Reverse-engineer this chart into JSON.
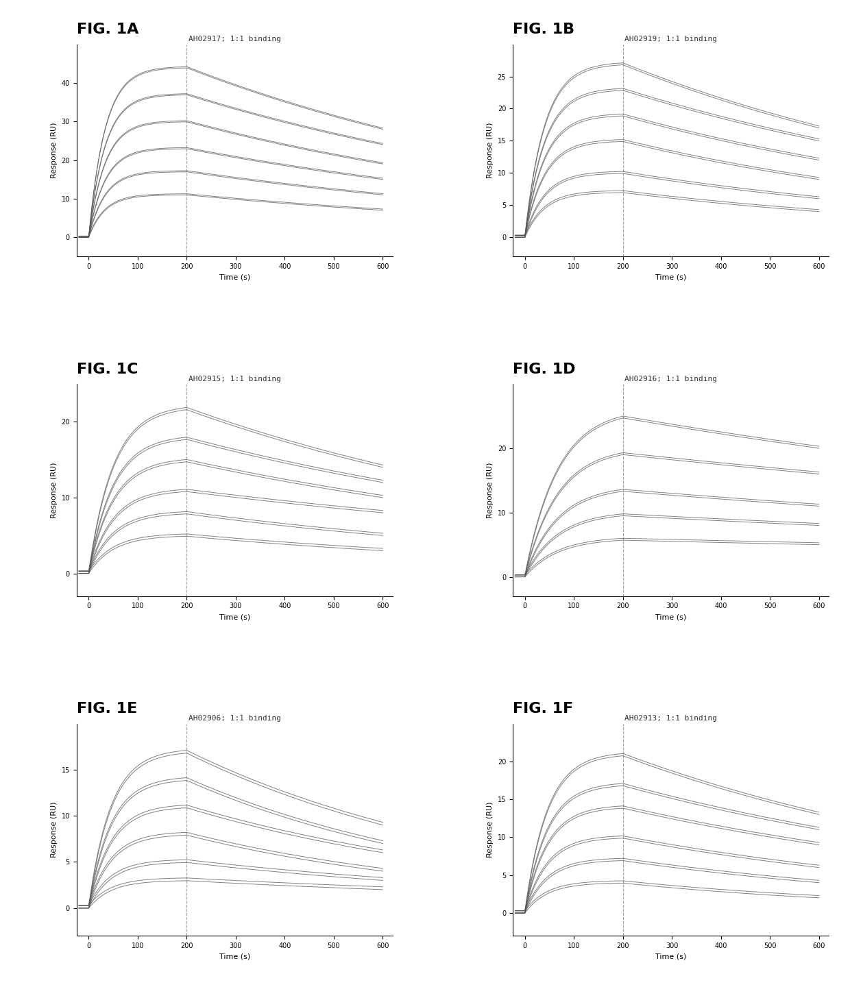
{
  "panels": [
    {
      "label": "FIG. 1A",
      "title": "AH02917; 1:1 binding",
      "ylim": [
        -5,
        50
      ],
      "yticks": [
        0,
        10,
        20,
        30,
        40
      ],
      "n_curves": 6,
      "peak_values": [
        44,
        37,
        30,
        23,
        17,
        11
      ],
      "end_values": [
        28,
        24,
        19,
        15,
        11,
        7
      ],
      "ka_values": [
        0.03,
        0.03,
        0.03,
        0.03,
        0.03,
        0.03
      ],
      "assoc_end": 200,
      "total_time": 600
    },
    {
      "label": "FIG. 1B",
      "title": "AH02919; 1:1 binding",
      "ylim": [
        -3,
        30
      ],
      "yticks": [
        0,
        5,
        10,
        15,
        20,
        25
      ],
      "n_curves": 6,
      "peak_values": [
        27,
        23,
        19,
        15,
        10,
        7
      ],
      "end_values": [
        17,
        15,
        12,
        9,
        6,
        4
      ],
      "ka_values": [
        0.025,
        0.025,
        0.025,
        0.025,
        0.025,
        0.025
      ],
      "assoc_end": 200,
      "total_time": 600
    },
    {
      "label": "FIG. 1C",
      "title": "AH02915; 1:1 binding",
      "ylim": [
        -3,
        25
      ],
      "yticks": [
        0,
        10,
        20
      ],
      "n_curves": 6,
      "peak_values": [
        22,
        18,
        15,
        11,
        8,
        5
      ],
      "end_values": [
        14,
        12,
        10,
        8,
        5,
        3
      ],
      "ka_values": [
        0.02,
        0.02,
        0.02,
        0.02,
        0.02,
        0.02
      ],
      "assoc_end": 200,
      "total_time": 600
    },
    {
      "label": "FIG. 1D",
      "title": "AH02916; 1:1 binding",
      "ylim": [
        -3,
        30
      ],
      "yticks": [
        0,
        10,
        20
      ],
      "n_curves": 5,
      "peak_values": [
        26,
        20,
        14,
        10,
        6
      ],
      "end_values": [
        20,
        16,
        11,
        8,
        5
      ],
      "ka_values": [
        0.015,
        0.015,
        0.015,
        0.015,
        0.015
      ],
      "assoc_end": 200,
      "total_time": 600
    },
    {
      "label": "FIG. 1E",
      "title": "AH02906; 1:1 binding",
      "ylim": [
        -3,
        20
      ],
      "yticks": [
        0,
        5,
        10,
        15
      ],
      "n_curves": 6,
      "peak_values": [
        17,
        14,
        11,
        8,
        5,
        3
      ],
      "end_values": [
        9,
        7,
        6,
        4,
        3,
        2
      ],
      "ka_values": [
        0.022,
        0.022,
        0.022,
        0.022,
        0.022,
        0.022
      ],
      "assoc_end": 200,
      "total_time": 600
    },
    {
      "label": "FIG. 1F",
      "title": "AH02913; 1:1 binding",
      "ylim": [
        -3,
        25
      ],
      "yticks": [
        0,
        5,
        10,
        15,
        20
      ],
      "n_curves": 6,
      "peak_values": [
        21,
        17,
        14,
        10,
        7,
        4
      ],
      "end_values": [
        13,
        11,
        9,
        6,
        4,
        2
      ],
      "ka_values": [
        0.022,
        0.022,
        0.022,
        0.022,
        0.022,
        0.022
      ],
      "assoc_end": 200,
      "total_time": 600
    }
  ],
  "xlabel": "Time (s)",
  "ylabel": "Response (RU)",
  "xticks": [
    0,
    100,
    200,
    300,
    400,
    500,
    600
  ],
  "line_color": "#555555",
  "background_color": "#ffffff",
  "label_fontsize": 16,
  "title_fontsize": 8,
  "axis_fontsize": 8,
  "tick_fontsize": 7,
  "fig_label_fontweight": "bold"
}
